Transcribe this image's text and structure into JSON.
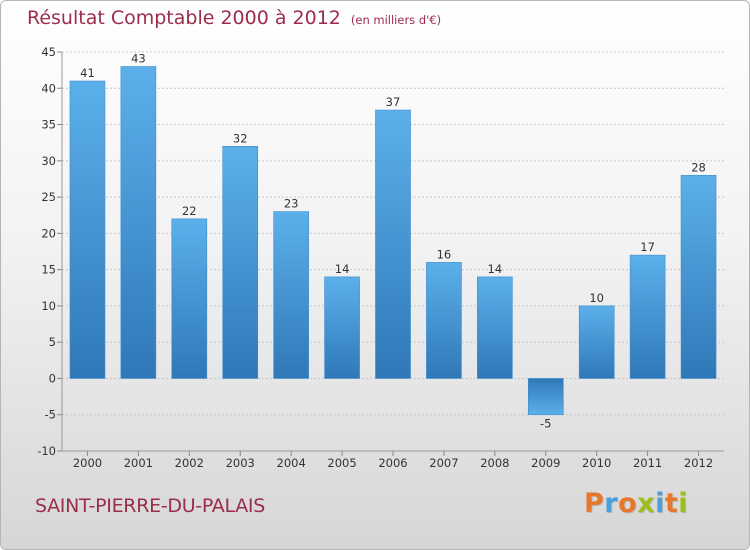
{
  "chart_data": {
    "type": "bar",
    "title": "Résultat Comptable 2000 à 2012",
    "subtitle": "(en milliers d'€)",
    "categories": [
      "2000",
      "2001",
      "2002",
      "2003",
      "2004",
      "2005",
      "2006",
      "2007",
      "2008",
      "2009",
      "2010",
      "2011",
      "2012"
    ],
    "values": [
      41,
      43,
      22,
      32,
      23,
      14,
      37,
      16,
      14,
      -5,
      10,
      17,
      28
    ],
    "ylim": [
      -10,
      45
    ],
    "yticks": [
      -10,
      -5,
      0,
      5,
      10,
      15,
      20,
      25,
      30,
      35,
      40,
      45
    ],
    "grid": true,
    "bar_color": "#4a9fdd",
    "bar_color_dark": "#2f78b8"
  },
  "commune": "SAINT-PIERRE-DU-PALAIS",
  "logo": {
    "text": "Proxiti",
    "letters": [
      {
        "ch": "P",
        "color": "#e8762b"
      },
      {
        "ch": "r",
        "color": "#4a9fdd"
      },
      {
        "ch": "o",
        "color": "#e8762b"
      },
      {
        "ch": "x",
        "color": "#9bbf1e"
      },
      {
        "ch": "i",
        "color": "#4a9fdd"
      },
      {
        "ch": "t",
        "color": "#e8762b"
      },
      {
        "ch": "i",
        "color": "#9bbf1e"
      }
    ]
  },
  "colors": {
    "accent": "#9b2d4c",
    "axis_text": "#333333",
    "grid": "#c8c8c8"
  }
}
